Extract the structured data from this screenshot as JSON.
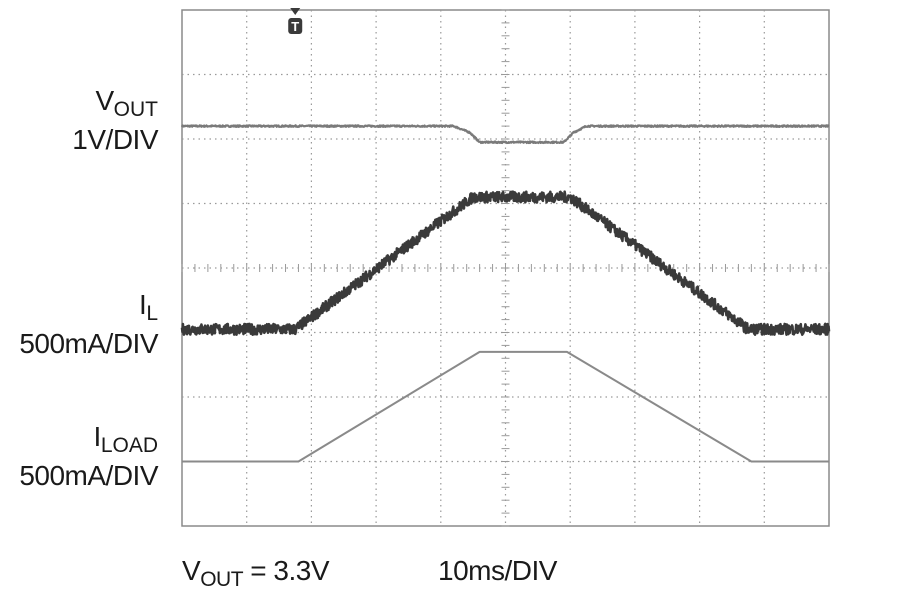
{
  "chart_data": {
    "type": "line",
    "subtype": "oscilloscope-capture",
    "grid": true,
    "divisions": {
      "x": 10,
      "y": 8
    },
    "x_scale": "10ms/DIV",
    "footer": {
      "vout_main": "V",
      "vout_sub": "OUT",
      "vout_value": " = 3.3V",
      "timebase": "10ms/DIV"
    },
    "trigger_marker": {
      "label": "T",
      "x_div": 1.75
    },
    "series": [
      {
        "main": "V",
        "sub": "OUT",
        "scale": "1V/DIV",
        "x": [
          0,
          4.2,
          4.45,
          4.6,
          5.9,
          6.05,
          6.25,
          10
        ],
        "y": [
          6.2,
          6.2,
          6.1,
          5.95,
          5.95,
          6.1,
          6.2,
          6.2
        ],
        "color": "#7a7a7a",
        "width": 2.2,
        "noise": 0.012
      },
      {
        "main": "I",
        "sub": "L",
        "scale": "500mA/DIV",
        "x": [
          0,
          1.75,
          4.5,
          6.0,
          8.75,
          10
        ],
        "y": [
          3.05,
          3.05,
          5.1,
          5.1,
          3.05,
          3.05
        ],
        "color": "#3a3a3a",
        "width": 2.6,
        "noise": 0.085
      },
      {
        "main": "I",
        "sub": "LOAD",
        "scale": "500mA/DIV",
        "x": [
          0,
          1.8,
          4.6,
          5.95,
          8.8,
          10
        ],
        "y": [
          1.0,
          1.0,
          2.7,
          2.7,
          1.0,
          1.0
        ],
        "color": "#8a8a8a",
        "width": 2.0,
        "noise": 0
      }
    ]
  }
}
